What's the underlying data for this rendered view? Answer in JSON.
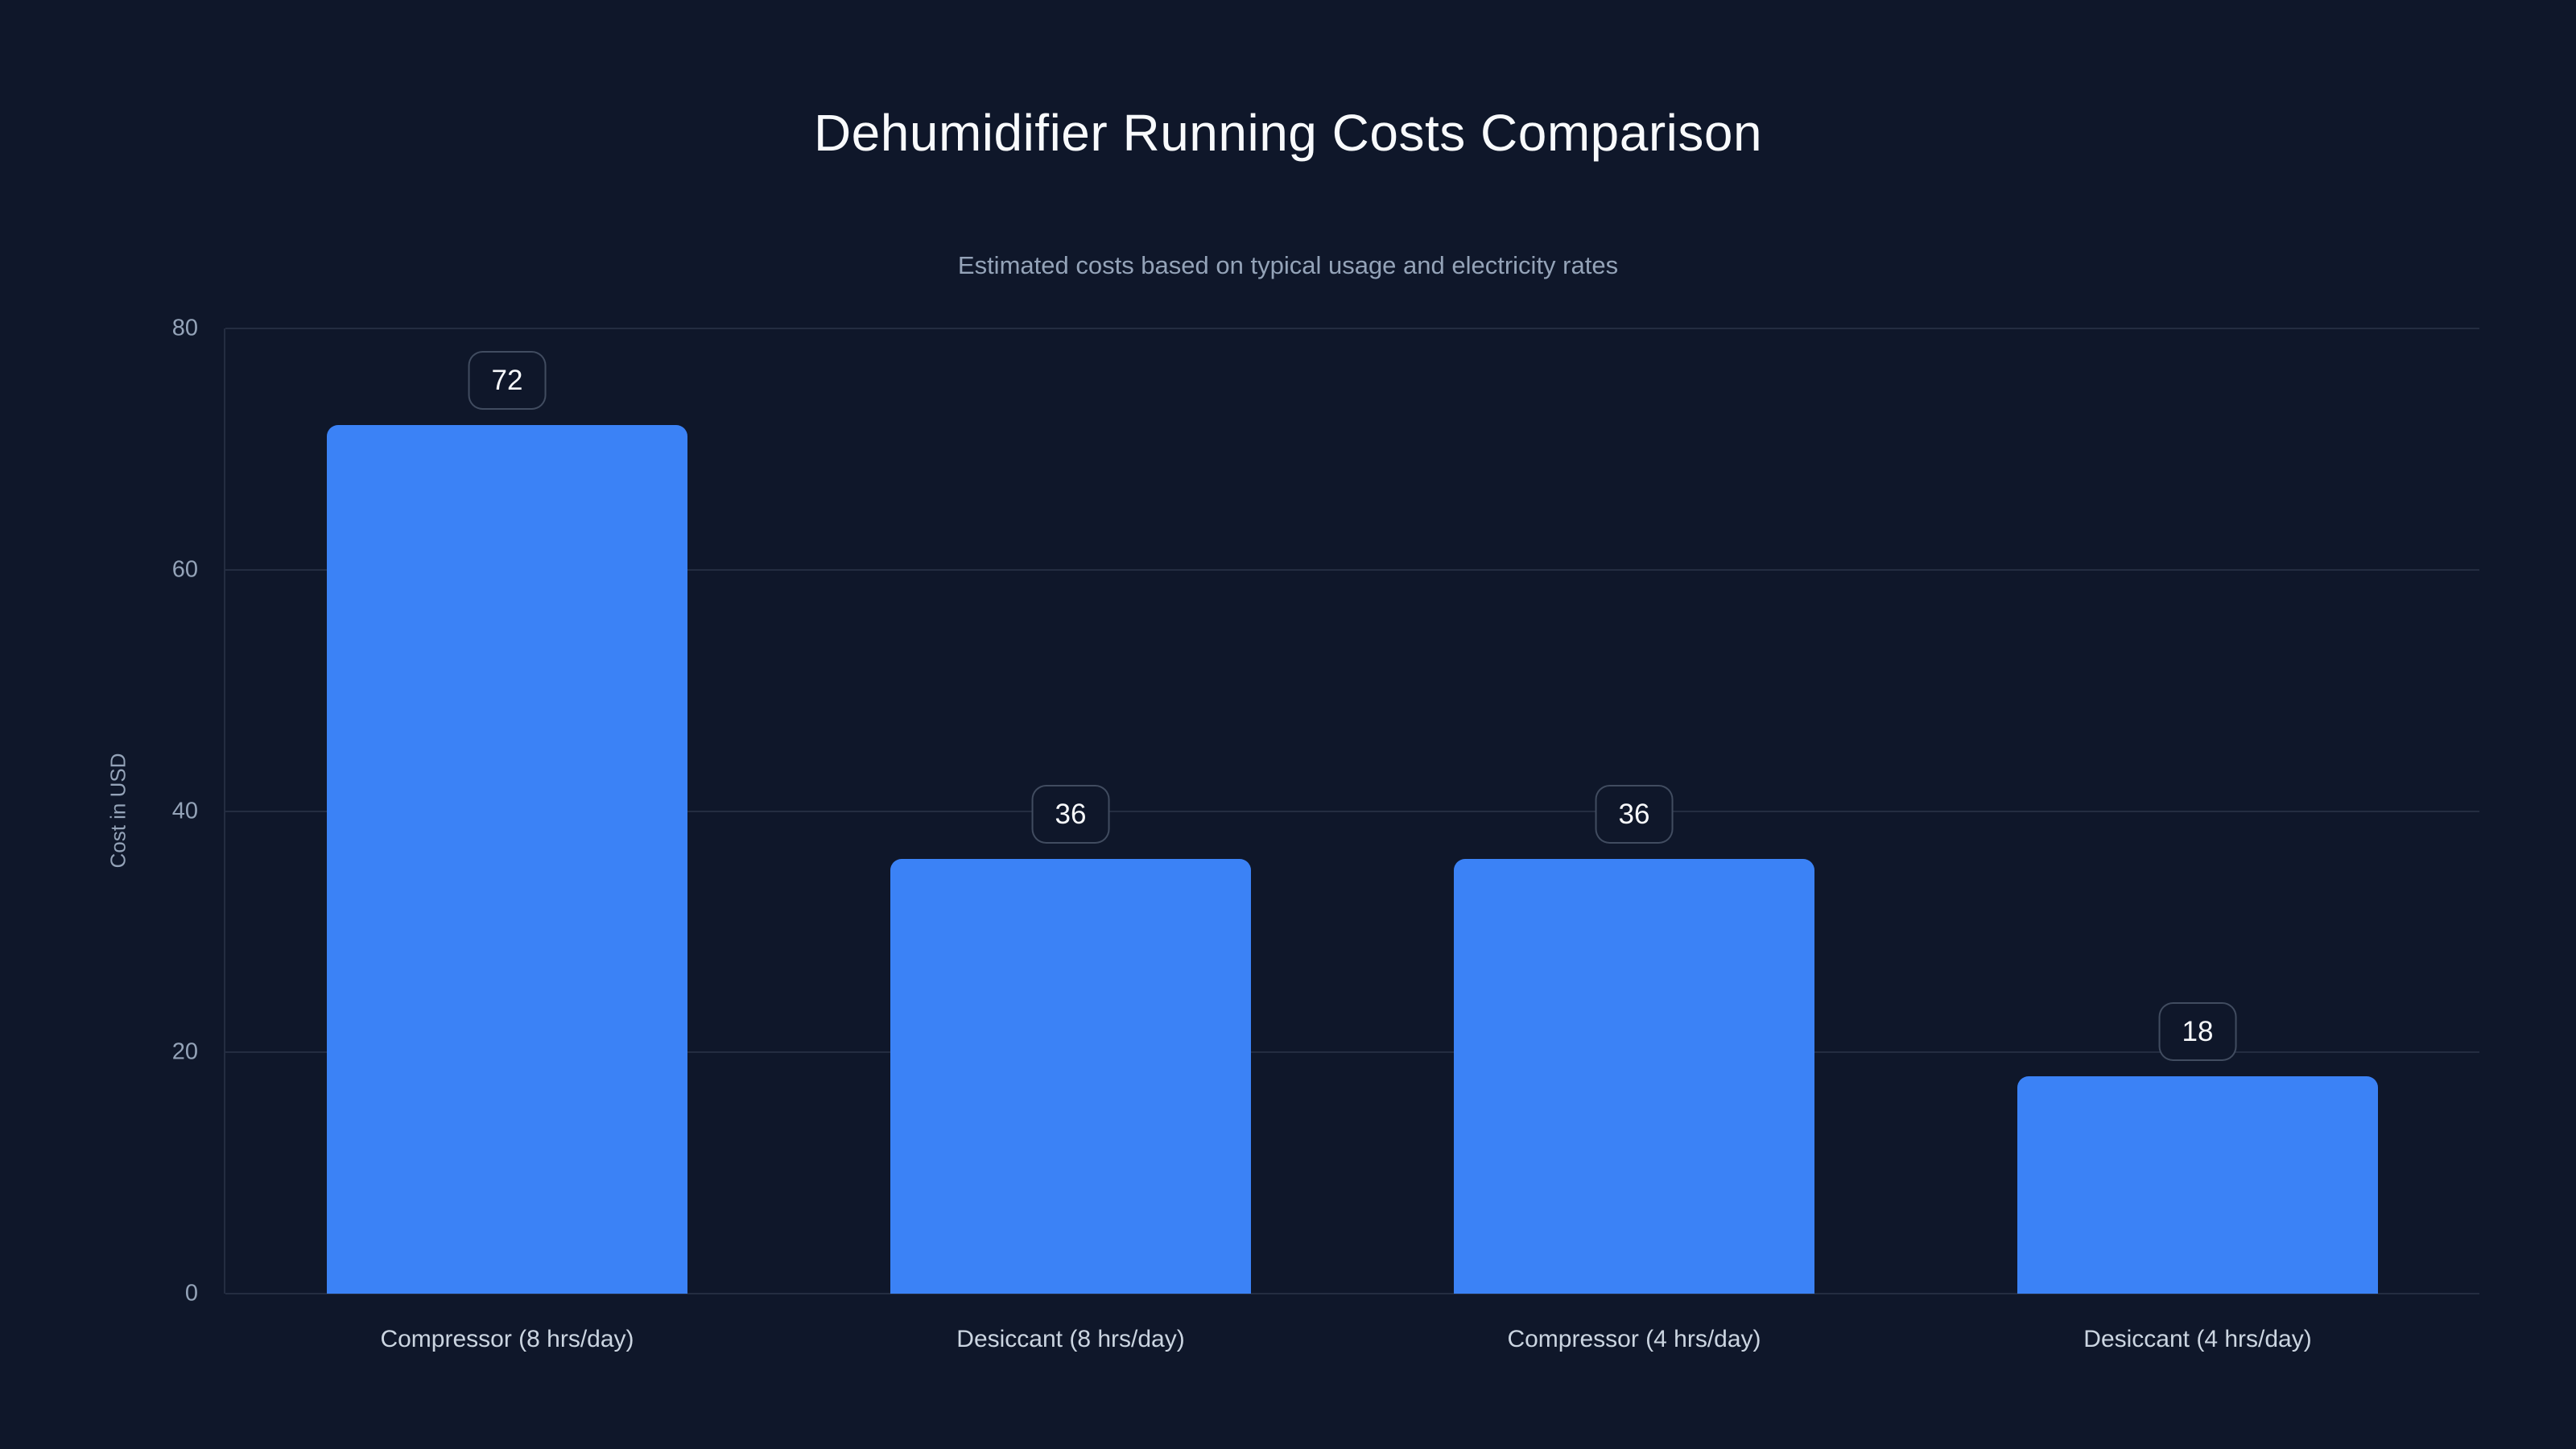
{
  "page": {
    "background_color": "#0f172a"
  },
  "chart_data": {
    "type": "bar",
    "title": "Dehumidifier Running Costs Comparison",
    "subtitle": "Estimated costs based on typical usage and electricity rates",
    "categories": [
      "Compressor (8 hrs/day)",
      "Desiccant (8 hrs/day)",
      "Compressor (4 hrs/day)",
      "Desiccant (4 hrs/day)"
    ],
    "values": [
      72,
      36,
      36,
      18
    ],
    "value_labels": [
      "72",
      "36",
      "36",
      "18"
    ],
    "xlabel": "",
    "ylabel": "Cost in USD",
    "ylim": [
      0,
      80
    ],
    "yticks": [
      "0",
      "20",
      "40",
      "60",
      "80"
    ],
    "ytick_values": [
      0,
      20,
      40,
      60,
      80
    ],
    "grid": true,
    "legend": false,
    "bar_color": "#3b82f6",
    "background_color": "#0f172a",
    "title_color": "#f8fafc",
    "subtitle_color": "#94a3b8",
    "tick_label_color": "#94a3b8",
    "category_label_color": "#cbd5e1",
    "value_badge_text_color": "#f8fafc",
    "value_badge_border_color": "rgba(148,163,184,0.38)",
    "gridline_color": "rgba(148,163,184,0.16)"
  }
}
